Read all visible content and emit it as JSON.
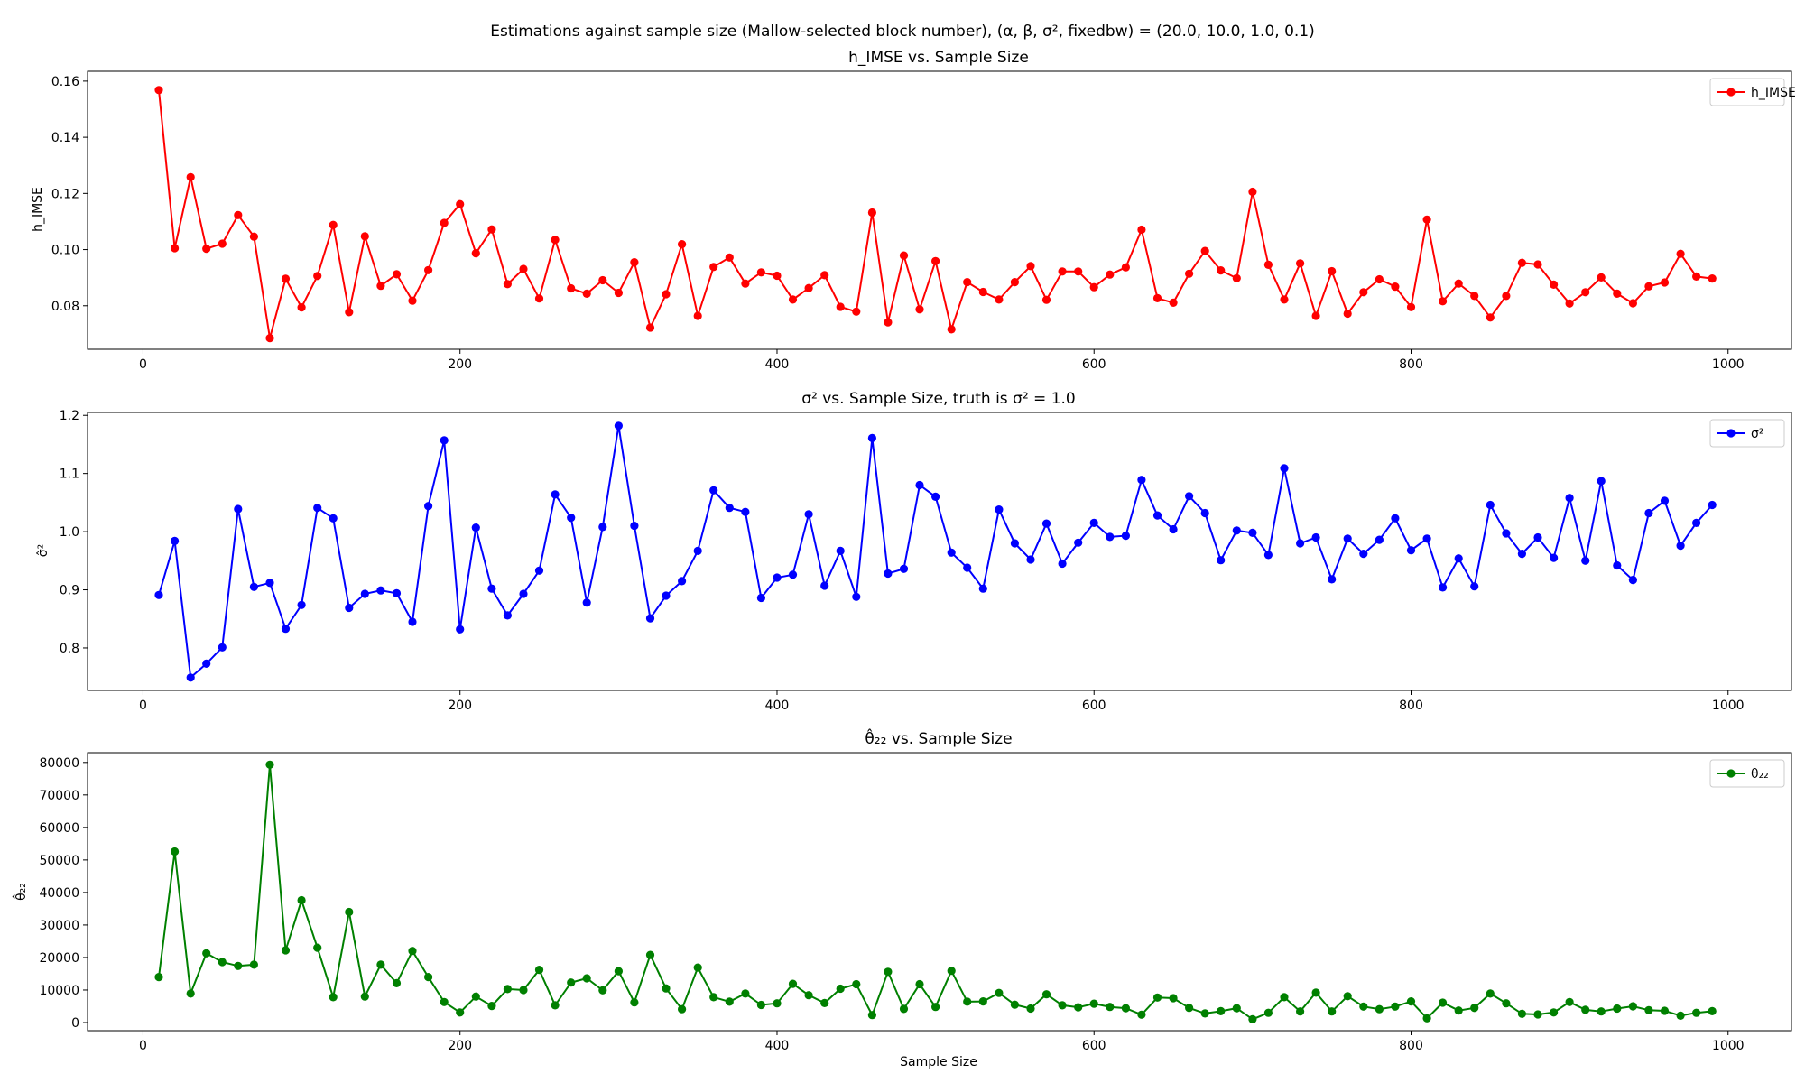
{
  "figure": {
    "suptitle": "Estimations against sample size (Mallow-selected block number), (α, β, σ², fixedbw) = (20.0, 10.0, 1.0, 0.1)",
    "xlabel": "Sample Size"
  },
  "chart_data": [
    {
      "type": "line",
      "title": "h_IMSE vs. Sample Size",
      "xlabel": "",
      "ylabel": "h_IMSE",
      "xlim": [
        -35,
        1040
      ],
      "ylim": [
        0.0645,
        0.1635
      ],
      "xticks": [
        0,
        200,
        400,
        600,
        800,
        1000
      ],
      "yticks": [
        0.08,
        0.1,
        0.12,
        0.14,
        0.16
      ],
      "ytick_labels": [
        "0.08",
        "0.10",
        "0.12",
        "0.14",
        "0.16"
      ],
      "legend_position": "top-right",
      "grid": false,
      "series": [
        {
          "name": "h_IMSE",
          "color": "#ff0000",
          "x": [
            10,
            20,
            30,
            40,
            50,
            60,
            70,
            80,
            90,
            100,
            110,
            120,
            130,
            140,
            150,
            160,
            170,
            180,
            190,
            200,
            210,
            220,
            230,
            240,
            250,
            260,
            270,
            280,
            290,
            300,
            310,
            320,
            330,
            340,
            350,
            360,
            370,
            380,
            390,
            400,
            410,
            420,
            430,
            440,
            450,
            460,
            470,
            480,
            490,
            500,
            510,
            520,
            530,
            540,
            550,
            560,
            570,
            580,
            590,
            600,
            610,
            620,
            630,
            640,
            650,
            660,
            670,
            680,
            690,
            700,
            710,
            720,
            730,
            740,
            750,
            760,
            770,
            780,
            790,
            800,
            810,
            820,
            830,
            840,
            850,
            860,
            870,
            880,
            890,
            900,
            910,
            920,
            930,
            940,
            950,
            960,
            970,
            980,
            990
          ],
          "values": [
            0.1568,
            0.1005,
            0.1258,
            0.1003,
            0.1021,
            0.1123,
            0.1046,
            0.0685,
            0.0896,
            0.0794,
            0.0906,
            0.1088,
            0.0777,
            0.1047,
            0.0871,
            0.0912,
            0.0818,
            0.0927,
            0.1095,
            0.1162,
            0.0987,
            0.1072,
            0.0877,
            0.0931,
            0.0826,
            0.1035,
            0.0862,
            0.0843,
            0.0891,
            0.0846,
            0.0955,
            0.0722,
            0.0841,
            0.1019,
            0.0764,
            0.0938,
            0.0972,
            0.0879,
            0.0919,
            0.0907,
            0.0822,
            0.0863,
            0.0909,
            0.0796,
            0.0779,
            0.1132,
            0.0741,
            0.0979,
            0.0787,
            0.0959,
            0.0716,
            0.0884,
            0.0849,
            0.0822,
            0.0884,
            0.0941,
            0.0821,
            0.0922,
            0.0922,
            0.0866,
            0.0911,
            0.0937,
            0.1071,
            0.0827,
            0.0811,
            0.0914,
            0.0995,
            0.0926,
            0.0898,
            0.1206,
            0.0946,
            0.0822,
            0.0951,
            0.0764,
            0.0923,
            0.0772,
            0.0848,
            0.0894,
            0.0868,
            0.0795,
            0.1107,
            0.0816,
            0.0879,
            0.0835,
            0.0758,
            0.0835,
            0.0953,
            0.0947,
            0.0875,
            0.0808,
            0.0848,
            0.0901,
            0.0843,
            0.0809,
            0.0869,
            0.0883,
            0.0985,
            0.0904,
            0.0897
          ]
        }
      ]
    },
    {
      "type": "line",
      "title": "σ² vs. Sample Size, truth is σ² = 1.0",
      "xlabel": "",
      "ylabel": "σ̂²",
      "xlim": [
        -35,
        1040
      ],
      "ylim": [
        0.727,
        1.205
      ],
      "xticks": [
        0,
        200,
        400,
        600,
        800,
        1000
      ],
      "yticks": [
        0.8,
        0.9,
        1.0,
        1.1,
        1.2
      ],
      "ytick_labels": [
        "0.8",
        "0.9",
        "1.0",
        "1.1",
        "1.2"
      ],
      "legend_position": "top-right",
      "grid": false,
      "series": [
        {
          "name": "σ²",
          "color": "#0000ff",
          "x": [
            10,
            20,
            30,
            40,
            50,
            60,
            70,
            80,
            90,
            100,
            110,
            120,
            130,
            140,
            150,
            160,
            170,
            180,
            190,
            200,
            210,
            220,
            230,
            240,
            250,
            260,
            270,
            280,
            290,
            300,
            310,
            320,
            330,
            340,
            350,
            360,
            370,
            380,
            390,
            400,
            410,
            420,
            430,
            440,
            450,
            460,
            470,
            480,
            490,
            500,
            510,
            520,
            530,
            540,
            550,
            560,
            570,
            580,
            590,
            600,
            610,
            620,
            630,
            640,
            650,
            660,
            670,
            680,
            690,
            700,
            710,
            720,
            730,
            740,
            750,
            760,
            770,
            780,
            790,
            800,
            810,
            820,
            830,
            840,
            850,
            860,
            870,
            880,
            890,
            900,
            910,
            920,
            930,
            940,
            950,
            960,
            970,
            980,
            990
          ],
          "values": [
            0.891,
            0.984,
            0.749,
            0.773,
            0.801,
            1.039,
            0.905,
            0.912,
            0.833,
            0.874,
            1.041,
            1.023,
            0.869,
            0.893,
            0.899,
            0.894,
            0.845,
            1.044,
            1.157,
            0.832,
            1.007,
            0.902,
            0.856,
            0.893,
            0.933,
            1.064,
            1.024,
            0.878,
            1.008,
            1.182,
            1.01,
            0.851,
            0.89,
            0.915,
            0.967,
            1.071,
            1.041,
            1.034,
            0.886,
            0.921,
            0.926,
            1.03,
            0.907,
            0.967,
            0.888,
            1.161,
            0.928,
            0.936,
            1.08,
            1.06,
            0.964,
            0.938,
            0.902,
            1.038,
            0.98,
            0.952,
            1.014,
            0.945,
            0.981,
            1.015,
            0.991,
            0.993,
            1.089,
            1.028,
            1.004,
            1.061,
            1.032,
            0.951,
            1.002,
            0.998,
            0.96,
            1.109,
            0.98,
            0.99,
            0.918,
            0.988,
            0.962,
            0.986,
            1.023,
            0.968,
            0.988,
            0.904,
            0.954,
            0.906,
            1.046,
            0.997,
            0.962,
            0.99,
            0.955,
            1.058,
            0.95,
            1.087,
            0.942,
            0.917,
            1.032,
            1.053,
            0.976,
            1.015,
            1.046
          ]
        }
      ]
    },
    {
      "type": "line",
      "title": "θ̂₂₂ vs. Sample Size",
      "xlabel": "Sample Size",
      "ylabel": "θ̂₂₂",
      "xlim": [
        -35,
        1040
      ],
      "ylim": [
        -2500,
        83000
      ],
      "xticks": [
        0,
        200,
        400,
        600,
        800,
        1000
      ],
      "yticks": [
        0,
        10000,
        20000,
        30000,
        40000,
        50000,
        60000,
        70000,
        80000
      ],
      "ytick_labels": [
        "0",
        "10000",
        "20000",
        "30000",
        "40000",
        "50000",
        "60000",
        "70000",
        "80000"
      ],
      "legend_position": "top-right",
      "grid": false,
      "series": [
        {
          "name": "θ₂₂",
          "color": "#008000",
          "x": [
            10,
            20,
            30,
            40,
            50,
            60,
            70,
            80,
            90,
            100,
            110,
            120,
            130,
            140,
            150,
            160,
            170,
            180,
            190,
            200,
            210,
            220,
            230,
            240,
            250,
            260,
            270,
            280,
            290,
            300,
            310,
            320,
            330,
            340,
            350,
            360,
            370,
            380,
            390,
            400,
            410,
            420,
            430,
            440,
            450,
            460,
            470,
            480,
            490,
            500,
            510,
            520,
            530,
            540,
            550,
            560,
            570,
            580,
            590,
            600,
            610,
            620,
            630,
            640,
            650,
            660,
            670,
            680,
            690,
            700,
            710,
            720,
            730,
            740,
            750,
            760,
            770,
            780,
            790,
            800,
            810,
            820,
            830,
            840,
            850,
            860,
            870,
            880,
            890,
            900,
            910,
            920,
            930,
            940,
            950,
            960,
            970,
            980,
            990
          ],
          "values": [
            14000,
            52600,
            8900,
            21300,
            18600,
            17400,
            17800,
            79300,
            22200,
            37600,
            23000,
            7800,
            34000,
            8000,
            17800,
            12100,
            22000,
            14000,
            6300,
            3100,
            8000,
            5100,
            10300,
            10000,
            16200,
            5300,
            12300,
            13600,
            9900,
            15800,
            6200,
            20800,
            10500,
            4100,
            16900,
            7800,
            6400,
            8900,
            5400,
            5900,
            11900,
            8400,
            6000,
            10400,
            11800,
            2300,
            15600,
            4200,
            11800,
            4800,
            15900,
            6400,
            6500,
            9100,
            5500,
            4300,
            8700,
            5300,
            4700,
            5800,
            4800,
            4400,
            2400,
            7700,
            7500,
            4500,
            2800,
            3500,
            4400,
            1000,
            3000,
            7800,
            3400,
            9200,
            3400,
            8100,
            4900,
            4100,
            4900,
            6500,
            1300,
            6100,
            3700,
            4500,
            8900,
            5900,
            2700,
            2500,
            3100,
            6300,
            3900,
            3400,
            4300,
            5000,
            3800,
            3600,
            2100,
            3000,
            3500
          ]
        }
      ]
    }
  ]
}
